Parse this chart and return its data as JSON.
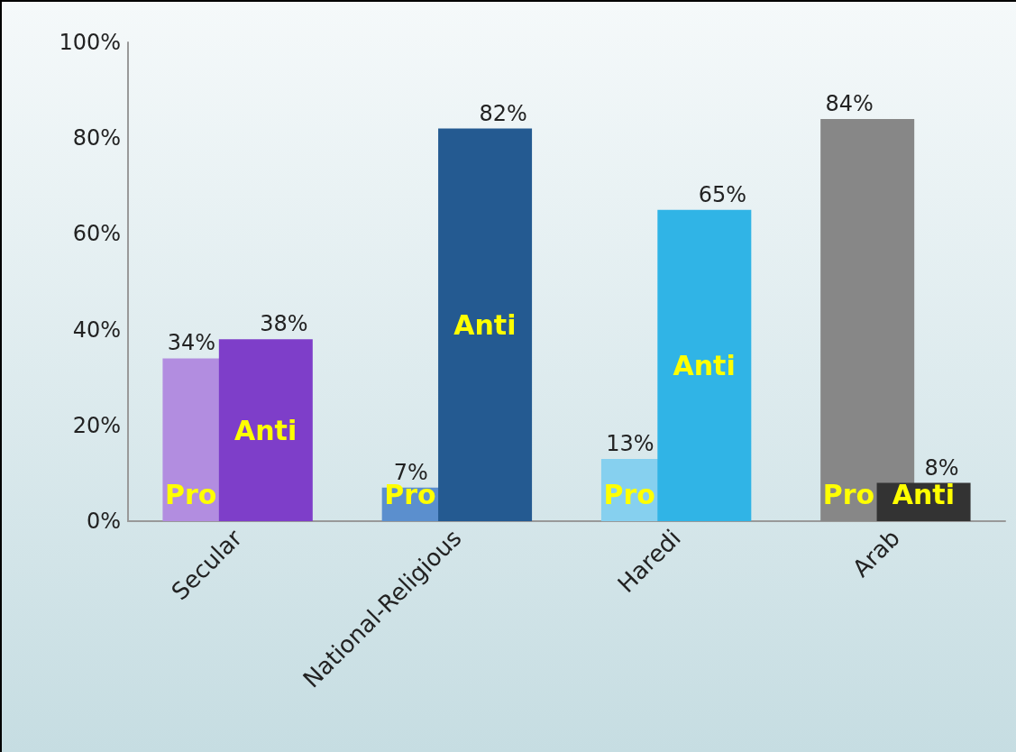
{
  "chart_data": {
    "type": "bar",
    "categories": [
      "Secular",
      "National-Religious",
      "Haredi",
      "Arab"
    ],
    "series": [
      {
        "name": "Pro",
        "colors": [
          "#b28de0",
          "#5b8fce",
          "#86d0ef",
          "#878787"
        ],
        "values": [
          34,
          7,
          13,
          84
        ],
        "value_labels": [
          "34%",
          "7%",
          "13%",
          "84%"
        ]
      },
      {
        "name": "Anti",
        "colors": [
          "#7e3ec9",
          "#245a91",
          "#30b4e6",
          "#333333"
        ],
        "values": [
          38,
          82,
          65,
          8
        ],
        "value_labels": [
          "38%",
          "82%",
          "65%",
          "8%"
        ]
      }
    ],
    "ylim": [
      0,
      100
    ],
    "yticks": [
      {
        "value": 0,
        "label": "0%"
      },
      {
        "value": 20,
        "label": "20%"
      },
      {
        "value": 40,
        "label": "40%"
      },
      {
        "value": 60,
        "label": "60%"
      },
      {
        "value": 80,
        "label": "80%"
      },
      {
        "value": 100,
        "label": "100%"
      }
    ],
    "grid": false,
    "legend": false
  }
}
